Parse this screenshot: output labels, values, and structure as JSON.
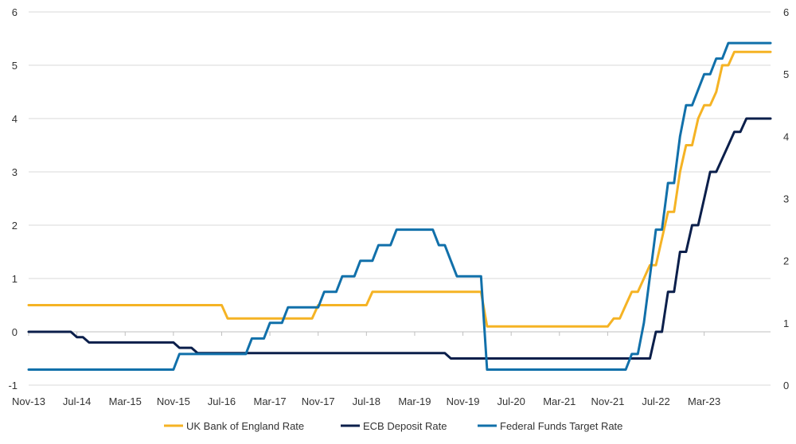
{
  "chart_data": {
    "type": "line",
    "title": "",
    "x_tick_labels": [
      "Nov-13",
      "Jul-14",
      "Mar-15",
      "Nov-15",
      "Jul-16",
      "Mar-17",
      "Nov-17",
      "Jul-18",
      "Mar-19",
      "Nov-19",
      "Jul-20",
      "Mar-21",
      "Nov-21",
      "Jul-22",
      "Mar-23"
    ],
    "xlim": [
      "2013-11",
      "2024-02"
    ],
    "left_axis": {
      "ylim": [
        -1,
        6
      ],
      "ticks": [
        "-1",
        "0",
        "1",
        "2",
        "3",
        "4",
        "5",
        "6"
      ]
    },
    "right_axis": {
      "ylim": [
        0,
        6
      ],
      "ticks": [
        "0",
        "1",
        "2",
        "3",
        "4",
        "5",
        "6"
      ]
    },
    "grid": "horizontal",
    "legend_position": "bottom",
    "colors": {
      "boe": "#F5B324",
      "ecb": "#0B1F4B",
      "fed": "#1170AA"
    },
    "series": [
      {
        "name": "UK Bank of England Rate",
        "axis": "left",
        "points": [
          [
            "2013-11",
            0.5
          ],
          [
            "2016-07",
            0.5
          ],
          [
            "2016-08",
            0.25
          ],
          [
            "2017-10",
            0.25
          ],
          [
            "2017-11",
            0.5
          ],
          [
            "2018-07",
            0.5
          ],
          [
            "2018-08",
            0.75
          ],
          [
            "2020-02",
            0.75
          ],
          [
            "2020-03",
            0.1
          ],
          [
            "2021-11",
            0.1
          ],
          [
            "2021-12",
            0.25
          ],
          [
            "2022-01",
            0.25
          ],
          [
            "2022-02",
            0.5
          ],
          [
            "2022-03",
            0.75
          ],
          [
            "2022-04",
            0.75
          ],
          [
            "2022-05",
            1.0
          ],
          [
            "2022-06",
            1.25
          ],
          [
            "2022-07",
            1.25
          ],
          [
            "2022-08",
            1.75
          ],
          [
            "2022-09",
            2.25
          ],
          [
            "2022-10",
            2.25
          ],
          [
            "2022-11",
            3.0
          ],
          [
            "2022-12",
            3.5
          ],
          [
            "2023-01",
            3.5
          ],
          [
            "2023-02",
            4.0
          ],
          [
            "2023-03",
            4.25
          ],
          [
            "2023-04",
            4.25
          ],
          [
            "2023-05",
            4.5
          ],
          [
            "2023-06",
            5.0
          ],
          [
            "2023-07",
            5.0
          ],
          [
            "2023-08",
            5.25
          ],
          [
            "2024-02",
            5.25
          ]
        ]
      },
      {
        "name": "ECB Deposit  Rate",
        "axis": "left",
        "points": [
          [
            "2013-11",
            0.0
          ],
          [
            "2014-06",
            0.0
          ],
          [
            "2014-07",
            -0.1
          ],
          [
            "2014-08",
            -0.1
          ],
          [
            "2014-09",
            -0.2
          ],
          [
            "2015-11",
            -0.2
          ],
          [
            "2015-12",
            -0.3
          ],
          [
            "2016-02",
            -0.3
          ],
          [
            "2016-03",
            -0.4
          ],
          [
            "2019-08",
            -0.4
          ],
          [
            "2019-09",
            -0.5
          ],
          [
            "2022-06",
            -0.5
          ],
          [
            "2022-07",
            0.0
          ],
          [
            "2022-08",
            0.0
          ],
          [
            "2022-09",
            0.75
          ],
          [
            "2022-10",
            0.75
          ],
          [
            "2022-11",
            1.5
          ],
          [
            "2022-12",
            1.5
          ],
          [
            "2023-01",
            2.0
          ],
          [
            "2023-02",
            2.0
          ],
          [
            "2023-03",
            2.5
          ],
          [
            "2023-04",
            3.0
          ],
          [
            "2023-05",
            3.0
          ],
          [
            "2023-06",
            3.25
          ],
          [
            "2023-07",
            3.5
          ],
          [
            "2023-08",
            3.75
          ],
          [
            "2023-09",
            3.75
          ],
          [
            "2023-10",
            4.0
          ],
          [
            "2024-02",
            4.0
          ]
        ]
      },
      {
        "name": "Federal Funds Target Rate",
        "axis": "right",
        "points": [
          [
            "2013-11",
            0.25
          ],
          [
            "2015-11",
            0.25
          ],
          [
            "2015-12",
            0.5
          ],
          [
            "2016-11",
            0.5
          ],
          [
            "2016-12",
            0.75
          ],
          [
            "2017-02",
            0.75
          ],
          [
            "2017-03",
            1.0
          ],
          [
            "2017-05",
            1.0
          ],
          [
            "2017-06",
            1.25
          ],
          [
            "2017-11",
            1.25
          ],
          [
            "2017-12",
            1.5
          ],
          [
            "2018-02",
            1.5
          ],
          [
            "2018-03",
            1.75
          ],
          [
            "2018-05",
            1.75
          ],
          [
            "2018-06",
            2.0
          ],
          [
            "2018-08",
            2.0
          ],
          [
            "2018-09",
            2.25
          ],
          [
            "2018-11",
            2.25
          ],
          [
            "2018-12",
            2.5
          ],
          [
            "2019-06",
            2.5
          ],
          [
            "2019-07",
            2.25
          ],
          [
            "2019-08",
            2.25
          ],
          [
            "2019-09",
            2.0
          ],
          [
            "2019-10",
            1.75
          ],
          [
            "2020-02",
            1.75
          ],
          [
            "2020-03",
            0.25
          ],
          [
            "2022-02",
            0.25
          ],
          [
            "2022-03",
            0.5
          ],
          [
            "2022-04",
            0.5
          ],
          [
            "2022-05",
            1.0
          ],
          [
            "2022-06",
            1.75
          ],
          [
            "2022-07",
            2.5
          ],
          [
            "2022-08",
            2.5
          ],
          [
            "2022-09",
            3.25
          ],
          [
            "2022-10",
            3.25
          ],
          [
            "2022-11",
            4.0
          ],
          [
            "2022-12",
            4.5
          ],
          [
            "2023-01",
            4.5
          ],
          [
            "2023-02",
            4.75
          ],
          [
            "2023-03",
            5.0
          ],
          [
            "2023-04",
            5.0
          ],
          [
            "2023-05",
            5.25
          ],
          [
            "2023-06",
            5.25
          ],
          [
            "2023-07",
            5.5
          ],
          [
            "2024-02",
            5.5
          ]
        ]
      }
    ]
  }
}
